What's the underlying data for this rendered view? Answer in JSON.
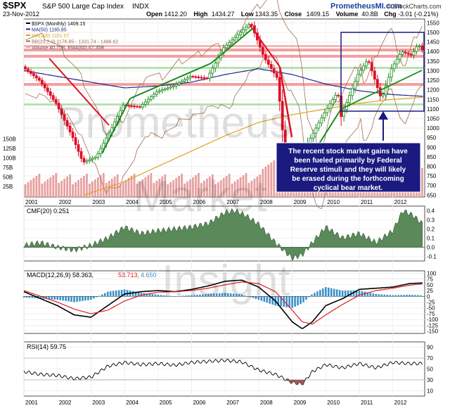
{
  "header": {
    "symbol": "$SPX",
    "name": "S&P 500 Large Cap Index",
    "exchange": "INDX",
    "date": "23-Nov-2012",
    "site_left": "PrometheusMI.com",
    "site_right": "© StockCharts.com",
    "ohlc": [
      {
        "label": "Open",
        "value": "1412.20"
      },
      {
        "label": "High",
        "value": "1434.27"
      },
      {
        "label": "Low",
        "value": "1343.35"
      },
      {
        "label": "Close",
        "value": "1409.15"
      },
      {
        "label": "Volume",
        "value": "40.8B"
      },
      {
        "label": "Chg",
        "value": "-3.01 (-0.21%)",
        "arrow": "▼"
      }
    ]
  },
  "watermark": [
    "Prometheus",
    "Market",
    "Insight"
  ],
  "annotation": "The recent stock market gains have been fueled primarily by Federal Reserve stimuli and they will likely be erased during the forthcoming cyclical bear market.",
  "colors": {
    "price_up": "#1a8a1a",
    "price_down": "#e0102a",
    "ma50": "#1f2a8a",
    "ma200": "#e0a020",
    "bb": "#a07050",
    "volume": "#e8a0a0",
    "cmf": "#5a8a5a",
    "macd": "#000000",
    "signal": "#e02020",
    "hist": "#3a90c8",
    "rsi": "#000000",
    "box": "#1a1a80"
  },
  "chart_data": [
    {
      "type": "candlestick",
      "title": "$SPX (Monthly) 1409.15",
      "x_labels": [
        "2001",
        "2002",
        "2003",
        "2004",
        "2005",
        "2006",
        "2007",
        "2008",
        "2009",
        "2010",
        "2011",
        "2012"
      ],
      "y_ticks": [
        650,
        700,
        750,
        800,
        850,
        900,
        950,
        1000,
        1050,
        1100,
        1150,
        1200,
        1250,
        1300,
        1350,
        1400,
        1450,
        1500,
        1550
      ],
      "ylim": [
        640,
        1570
      ],
      "legend": [
        "$SPX (Monthly) 1409.15",
        "MA(50) 1165.85",
        "MA(200) 1161.07",
        "BB(20,2.0) 1176.85 - 1331.74 - 1486.62",
        "Volume 40.75B, EMA(60) 67.35B"
      ],
      "volume_ticks": [
        "25B",
        "50B",
        "75B",
        "100B",
        "125B",
        "150B"
      ],
      "series": [
        {
          "name": "$SPX",
          "x": [
            2001.0,
            2001.5,
            2002.0,
            2002.5,
            2002.8,
            2003.2,
            2003.6,
            2004.0,
            2004.5,
            2005.0,
            2005.5,
            2006.0,
            2006.5,
            2007.0,
            2007.5,
            2007.8,
            2008.2,
            2008.6,
            2008.8,
            2009.2,
            2009.5,
            2010.0,
            2010.4,
            2010.5,
            2011.0,
            2011.3,
            2011.7,
            2012.0,
            2012.3,
            2012.6,
            2012.8,
            2012.9
          ],
          "values": [
            1320,
            1250,
            1130,
            950,
            820,
            850,
            980,
            1120,
            1110,
            1190,
            1220,
            1270,
            1260,
            1420,
            1500,
            1550,
            1370,
            1260,
            900,
            700,
            920,
            1080,
            1190,
            1060,
            1280,
            1360,
            1150,
            1310,
            1400,
            1380,
            1440,
            1409
          ]
        },
        {
          "name": "MA(50)",
          "x": [
            2001.0,
            2002.0,
            2003.0,
            2004.0,
            2005.0,
            2006.0,
            2007.0,
            2008.0,
            2009.0,
            2010.0,
            2011.0,
            2012.0,
            2012.9
          ],
          "values": [
            1300,
            1270,
            1240,
            1210,
            1220,
            1240,
            1280,
            1310,
            1280,
            1230,
            1195,
            1175,
            1166
          ]
        },
        {
          "name": "MA(200)",
          "x": [
            2002.8,
            2004.0,
            2005.0,
            2006.0,
            2007.0,
            2008.0,
            2009.0,
            2010.0,
            2011.0,
            2012.0,
            2012.9
          ],
          "values": [
            650,
            720,
            800,
            880,
            960,
            1030,
            1070,
            1100,
            1130,
            1150,
            1161
          ]
        }
      ]
    },
    {
      "type": "area",
      "title": "CMF(20) 0.251",
      "y_ticks": [
        -0.1,
        0.0,
        0.1,
        0.2,
        0.3,
        0.4
      ],
      "ylim": [
        -0.15,
        0.45
      ],
      "series": [
        {
          "name": "CMF(20)",
          "x": [
            2001.0,
            2001.5,
            2002.0,
            2002.5,
            2003.0,
            2003.5,
            2004.0,
            2004.5,
            2005.0,
            2005.5,
            2006.0,
            2006.5,
            2007.0,
            2007.3,
            2007.6,
            2008.0,
            2008.5,
            2009.0,
            2009.3,
            2009.6,
            2010.0,
            2010.5,
            2011.0,
            2011.5,
            2012.0,
            2012.3,
            2012.6,
            2012.9
          ],
          "values": [
            0.02,
            0.05,
            0.0,
            -0.03,
            0.02,
            0.1,
            0.22,
            0.15,
            0.18,
            0.2,
            0.22,
            0.26,
            0.38,
            0.4,
            0.35,
            0.25,
            0.05,
            -0.12,
            -0.08,
            0.05,
            0.22,
            0.1,
            0.15,
            0.05,
            0.18,
            0.4,
            0.35,
            0.25
          ]
        }
      ]
    },
    {
      "type": "line",
      "title": "MACD(12,26,9) 58.363, 53.713, 4.650",
      "y_ticks": [
        -150,
        -125,
        -100,
        -75,
        -50,
        -25,
        0,
        25,
        50,
        75,
        100
      ],
      "ylim": [
        -160,
        110
      ],
      "series": [
        {
          "name": "MACD(12,26,9)",
          "x": [
            2001.0,
            2001.5,
            2002.0,
            2002.5,
            2003.0,
            2003.5,
            2004.0,
            2004.5,
            2005.0,
            2005.5,
            2006.0,
            2006.5,
            2007.0,
            2007.5,
            2008.0,
            2008.5,
            2009.0,
            2009.3,
            2009.6,
            2010.0,
            2010.5,
            2011.0,
            2011.5,
            2012.0,
            2012.5,
            2012.9
          ],
          "values": [
            20,
            -10,
            -40,
            -80,
            -90,
            -40,
            10,
            20,
            25,
            20,
            30,
            45,
            65,
            70,
            40,
            -20,
            -110,
            -140,
            -110,
            -40,
            -10,
            30,
            35,
            40,
            55,
            58
          ]
        },
        {
          "name": "Signal",
          "x": [
            2001.0,
            2001.5,
            2002.0,
            2002.5,
            2003.0,
            2003.5,
            2004.0,
            2004.5,
            2005.0,
            2005.5,
            2006.0,
            2006.5,
            2007.0,
            2007.5,
            2008.0,
            2008.5,
            2009.0,
            2009.3,
            2009.6,
            2010.0,
            2010.5,
            2011.0,
            2011.5,
            2012.0,
            2012.5,
            2012.9
          ],
          "values": [
            25,
            0,
            -25,
            -55,
            -75,
            -60,
            -20,
            5,
            18,
            20,
            25,
            35,
            50,
            62,
            55,
            20,
            -60,
            -110,
            -120,
            -80,
            -35,
            5,
            25,
            35,
            48,
            54
          ]
        }
      ]
    },
    {
      "type": "line",
      "title": "RSI(14) 59.75",
      "y_ticks": [
        10,
        30,
        50,
        70,
        90
      ],
      "ylim": [
        0,
        100
      ],
      "series": [
        {
          "name": "RSI(14)",
          "x": [
            2001.0,
            2001.5,
            2002.0,
            2002.5,
            2003.0,
            2003.5,
            2004.0,
            2004.5,
            2005.0,
            2005.5,
            2006.0,
            2006.5,
            2007.0,
            2007.5,
            2008.0,
            2008.5,
            2009.0,
            2009.3,
            2009.6,
            2010.0,
            2010.5,
            2011.0,
            2011.5,
            2012.0,
            2012.5,
            2012.9
          ],
          "values": [
            45,
            40,
            38,
            32,
            35,
            55,
            62,
            58,
            60,
            57,
            62,
            64,
            66,
            63,
            48,
            40,
            25,
            22,
            45,
            58,
            52,
            60,
            52,
            62,
            60,
            60
          ]
        }
      ]
    }
  ]
}
